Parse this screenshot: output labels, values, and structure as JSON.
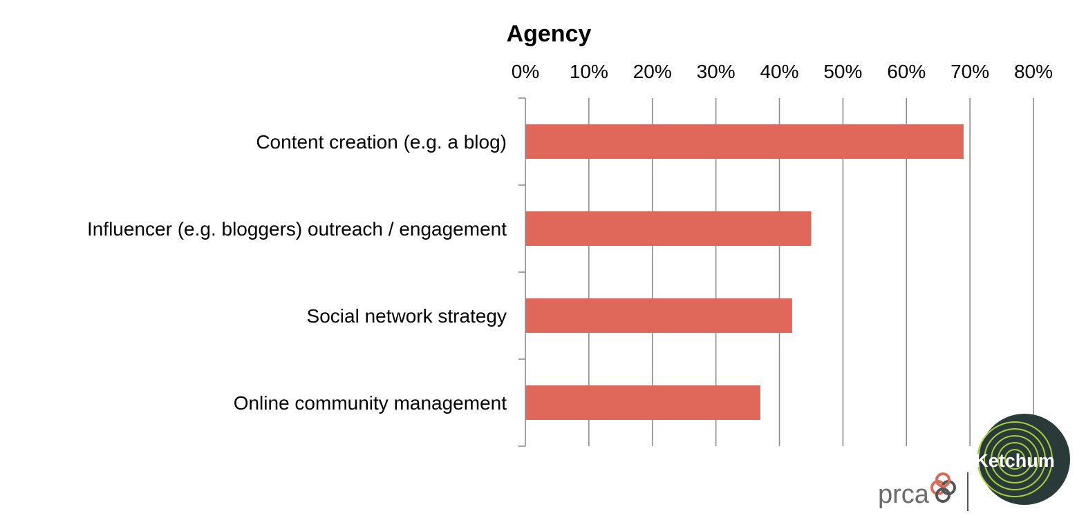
{
  "chart_data": {
    "type": "bar",
    "orientation": "horizontal",
    "title": "Agency",
    "categories": [
      "Content creation (e.g. a blog)",
      "Influencer (e.g. bloggers) outreach / engagement",
      "Social network strategy",
      "Online community management"
    ],
    "values": [
      69,
      45,
      42,
      37
    ],
    "xlim": [
      0,
      80
    ],
    "tick_values": [
      0,
      10,
      20,
      30,
      40,
      50,
      60,
      70,
      80
    ],
    "tick_labels": [
      "0%",
      "10%",
      "20%",
      "30%",
      "40%",
      "50%",
      "60%",
      "70%",
      "80%"
    ],
    "x_axis_position": "top",
    "grid": true,
    "bar_color": "#e0685a"
  },
  "logos": {
    "prca": "prca",
    "ketchum": "Ketchum",
    "ketchum_color": "#2a3a38",
    "ketchum_ring_color": "#a6d13a"
  }
}
